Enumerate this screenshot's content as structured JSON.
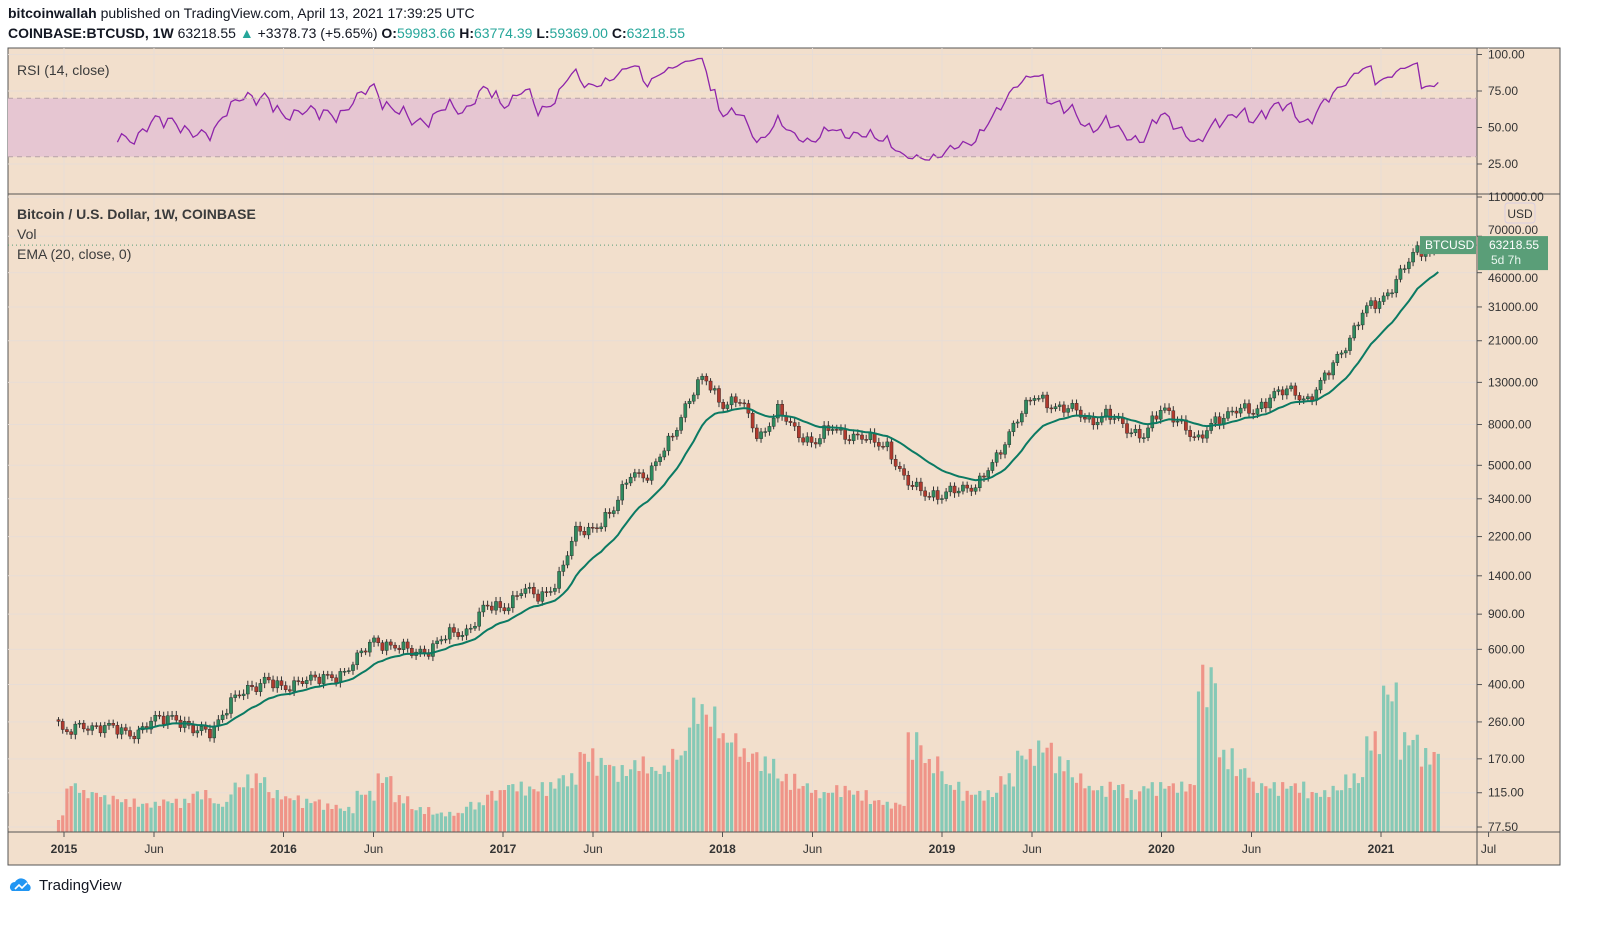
{
  "header": {
    "author": "bitcoinwallah",
    "published": "published on TradingView.com, April 13, 2021 17:39:25 UTC",
    "symbol": "COINBASE:BTCUSD, 1W",
    "last": "63218.55",
    "arrow": "▲",
    "change": "+3378.73 (+5.65%)",
    "o_label": "O:",
    "open": "59983.66",
    "h_label": "H:",
    "high": "63774.39",
    "l_label": "L:",
    "low": "59369.00",
    "c_label": "C:",
    "close": "63218.55"
  },
  "rsi_pane": {
    "label": "RSI (14, close)",
    "ticks": [
      "100.00",
      "75.00",
      "50.00",
      "25.00"
    ],
    "band": [
      30,
      70
    ]
  },
  "main_pane": {
    "title": "Bitcoin / U.S. Dollar, 1W, COINBASE",
    "vol_label": "Vol",
    "ema_label": "EMA (20, close, 0)",
    "currency": "USD",
    "price_tag": {
      "symbol": "BTCUSD",
      "price": "63218.55",
      "countdown": "5d 7h"
    }
  },
  "footer": {
    "brand": "TradingView"
  },
  "colors": {
    "background": "#f2dfcc",
    "up": "#2f8a5e",
    "down": "#b03a2e",
    "vol_up": "#86c9b6",
    "vol_down": "#ef9488",
    "ema": "#0b7a63",
    "rsi": "#8e24aa",
    "rsi_band": "#e6c6d2",
    "tag": "#5a9e78"
  },
  "chart_data": {
    "type": "candlestick",
    "scale": "log",
    "interval": "1W",
    "y_ticks": [
      "110000.00",
      "70000.00",
      "46000.00",
      "31000.00",
      "21000.00",
      "13000.00",
      "8000.00",
      "5000.00",
      "3400.00",
      "2200.00",
      "1400.00",
      "900.00",
      "600.00",
      "400.00",
      "260.00",
      "170.00",
      "115.00",
      "77.50"
    ],
    "x_ticks": [
      "2015",
      "Jun",
      "2016",
      "Jun",
      "2017",
      "Jun",
      "2018",
      "Jun",
      "2019",
      "Jun",
      "2020",
      "Jun",
      "2021",
      "Jul"
    ],
    "grid": true,
    "monthly_close": {
      "start": "2014-12",
      "values": [
        375,
        218,
        254,
        244,
        236,
        230,
        263,
        284,
        230,
        236,
        314,
        377,
        430,
        368,
        437,
        416,
        448,
        531,
        673,
        624,
        575,
        609,
        700,
        745,
        964,
        970,
        1190,
        1080,
        1350,
        2300,
        2480,
        2870,
        4740,
        4340,
        6470,
        9950,
        13860,
        10220,
        10330,
        6930,
        9240,
        7500,
        6400,
        7730,
        7030,
        6630,
        6370,
        4040,
        3740,
        3460,
        3810,
        4100,
        5320,
        8570,
        10820,
        10080,
        9600,
        8300,
        9150,
        7570,
        7200,
        9350,
        8540,
        6420,
        8630,
        9450,
        9140,
        11350,
        11650,
        10780,
        13800,
        19700,
        28990,
        33100,
        45200,
        58800
      ]
    },
    "monthly_volume_relative": [
      0.1,
      0.3,
      0.25,
      0.22,
      0.2,
      0.18,
      0.2,
      0.2,
      0.25,
      0.18,
      0.3,
      0.35,
      0.25,
      0.22,
      0.2,
      0.17,
      0.15,
      0.25,
      0.35,
      0.22,
      0.15,
      0.12,
      0.12,
      0.18,
      0.25,
      0.3,
      0.28,
      0.3,
      0.35,
      0.5,
      0.45,
      0.4,
      0.45,
      0.4,
      0.5,
      0.8,
      0.75,
      0.6,
      0.5,
      0.45,
      0.35,
      0.3,
      0.25,
      0.28,
      0.25,
      0.2,
      0.18,
      0.6,
      0.45,
      0.3,
      0.25,
      0.25,
      0.35,
      0.5,
      0.55,
      0.45,
      0.35,
      0.28,
      0.3,
      0.25,
      0.3,
      0.3,
      0.3,
      1.0,
      0.5,
      0.4,
      0.3,
      0.3,
      0.3,
      0.25,
      0.28,
      0.35,
      0.6,
      0.9,
      0.6,
      0.5
    ],
    "last_candle": {
      "open": 59983.66,
      "high": 63774.39,
      "low": 59369.0,
      "close": 63218.55
    },
    "indicators": [
      {
        "name": "EMA (20, close, 0)"
      },
      {
        "name": "RSI (14, close)"
      }
    ]
  }
}
